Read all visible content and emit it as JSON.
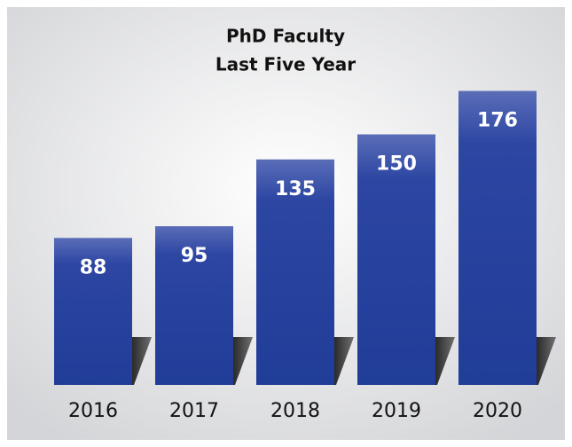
{
  "chart_data": {
    "type": "bar",
    "title": "PhD Faculty",
    "subtitle": "Last Five Year",
    "categories": [
      "2016",
      "2017",
      "2018",
      "2019",
      "2020"
    ],
    "values": [
      88,
      95,
      135,
      150,
      176
    ],
    "color": "#2a43a0",
    "ylim": [
      0,
      180
    ]
  }
}
